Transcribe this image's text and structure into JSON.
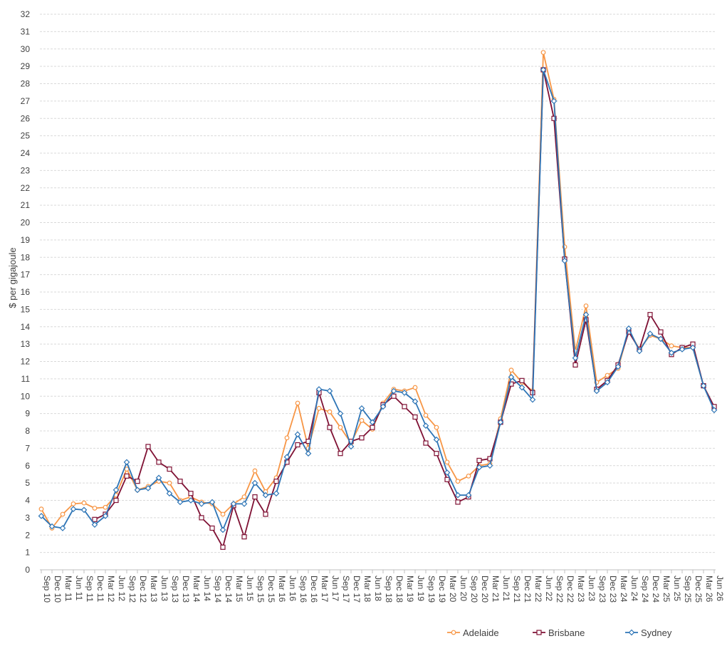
{
  "chart_data": {
    "type": "line",
    "title": "",
    "xlabel": "",
    "ylabel": "$ per gigajoule",
    "ylim": [
      0,
      32
    ],
    "y_ticks": [
      0,
      1,
      2,
      3,
      4,
      5,
      6,
      7,
      8,
      9,
      10,
      11,
      12,
      13,
      14,
      15,
      16,
      17,
      18,
      19,
      20,
      21,
      22,
      23,
      24,
      25,
      26,
      27,
      28,
      29,
      30,
      31,
      32
    ],
    "grid": true,
    "legend_position": "bottom-right",
    "categories": [
      "Sep 10",
      "Dec 10",
      "Mar 11",
      "Jun 11",
      "Sep 11",
      "Dec 11",
      "Mar 12",
      "Jun 12",
      "Sep 12",
      "Dec 12",
      "Mar 13",
      "Jun 13",
      "Sep 13",
      "Dec 13",
      "Mar 14",
      "Jun 14",
      "Sep 14",
      "Dec 14",
      "Mar 15",
      "Jun 15",
      "Sep 15",
      "Dec 15",
      "Mar 16",
      "Jun 16",
      "Sep 16",
      "Dec 16",
      "Mar 17",
      "Jun 17",
      "Sep 17",
      "Dec 17",
      "Mar 18",
      "Jun 18",
      "Sep 18",
      "Dec 18",
      "Mar 19",
      "Jun 19",
      "Sep 19",
      "Dec 19",
      "Mar 20",
      "Jun 20",
      "Sep 20",
      "Dec 20",
      "Mar 21",
      "Jun 21",
      "Sep 21",
      "Dec 21",
      "Mar 22",
      "Jun 22",
      "Sep 22",
      "Dec 22",
      "Mar 23",
      "Jun 23",
      "Sep 23",
      "Dec 23",
      "Mar 24",
      "Jun 24",
      "Sep 24",
      "Dec 24",
      "Mar 25",
      "Jun 25",
      "Sep 25",
      "Dec 25",
      "Mar 26",
      "Jun 26"
    ],
    "series": [
      {
        "name": "Adelaide",
        "color": "#f79646",
        "marker": "circle",
        "values": [
          3.5,
          2.4,
          3.2,
          3.8,
          3.85,
          3.55,
          3.6,
          4.3,
          5.8,
          4.6,
          4.8,
          5.1,
          5.0,
          4.0,
          4.2,
          3.9,
          3.8,
          3.2,
          3.8,
          4.2,
          5.7,
          4.5,
          5.3,
          7.6,
          9.6,
          7.0,
          9.3,
          9.1,
          8.2,
          7.3,
          8.6,
          8.1,
          9.6,
          10.4,
          10.3,
          10.5,
          8.9,
          8.2,
          6.2,
          5.1,
          5.4,
          6.0,
          6.1,
          8.7,
          11.5,
          10.8,
          10.3,
          29.8,
          27.1,
          18.6,
          12.6,
          15.2,
          10.8,
          11.2,
          11.6,
          13.8,
          12.7,
          13.5,
          13.3,
          12.9,
          12.8,
          12.8,
          10.6,
          9.3
        ]
      },
      {
        "name": "Brisbane",
        "color": "#7f1134",
        "marker": "square",
        "values": [
          null,
          null,
          null,
          null,
          null,
          2.9,
          3.2,
          4.0,
          5.4,
          5.1,
          7.1,
          6.2,
          5.8,
          5.1,
          4.4,
          3.0,
          2.4,
          1.3,
          3.7,
          1.9,
          4.2,
          3.2,
          5.1,
          6.2,
          7.2,
          7.4,
          10.2,
          8.2,
          6.7,
          7.4,
          7.6,
          8.2,
          9.5,
          10.0,
          9.4,
          8.8,
          7.3,
          6.7,
          5.2,
          3.9,
          4.2,
          6.3,
          6.4,
          8.5,
          10.7,
          10.9,
          10.2,
          28.8,
          26.0,
          17.9,
          11.8,
          14.4,
          10.4,
          10.9,
          11.8,
          13.7,
          12.7,
          14.7,
          13.7,
          12.4,
          12.8,
          13.0,
          10.6,
          9.4
        ]
      },
      {
        "name": "Sydney",
        "color": "#2e75b6",
        "marker": "diamond",
        "values": [
          3.1,
          2.5,
          2.4,
          3.5,
          3.45,
          2.6,
          3.1,
          4.6,
          6.2,
          4.6,
          4.7,
          5.3,
          4.4,
          3.9,
          4.0,
          3.8,
          3.9,
          2.3,
          3.8,
          3.8,
          5.0,
          4.3,
          4.4,
          6.5,
          7.8,
          6.7,
          10.4,
          10.3,
          9.0,
          7.1,
          9.3,
          8.5,
          9.4,
          10.3,
          10.2,
          9.7,
          8.3,
          7.5,
          5.6,
          4.3,
          4.3,
          5.9,
          6.0,
          8.5,
          11.1,
          10.5,
          9.8,
          28.8,
          27.0,
          17.8,
          12.2,
          14.7,
          10.3,
          10.8,
          11.7,
          13.9,
          12.6,
          13.6,
          13.3,
          12.5,
          12.7,
          12.8,
          10.6,
          9.2
        ]
      }
    ]
  }
}
